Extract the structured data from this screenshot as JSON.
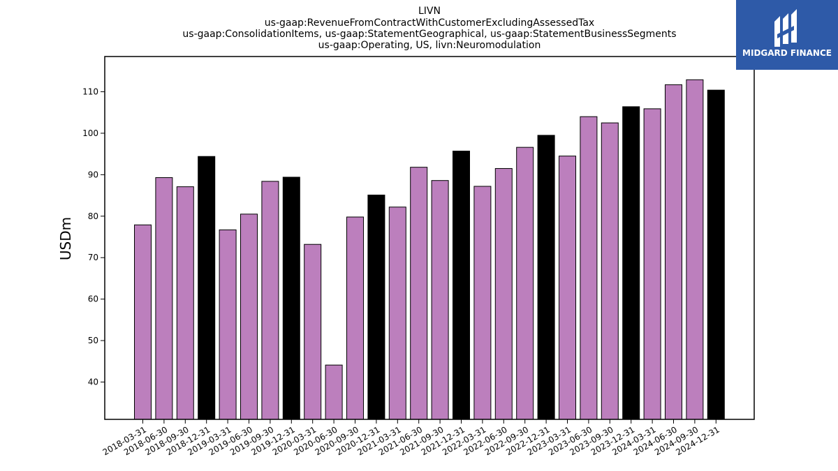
{
  "brand": {
    "name": "MIDGARD FINANCE",
    "background_color": "#2e5aa8",
    "icon": "midgard-logo-icon"
  },
  "chart_data": {
    "type": "bar",
    "title_lines": [
      "LIVN",
      "us-gaap:RevenueFromContractWithCustomerExcludingAssessedTax",
      "us-gaap:ConsolidationItems, us-gaap:StatementGeographical, us-gaap:StatementBusinessSegments",
      "us-gaap:Operating, US, livn:Neuromodulation"
    ],
    "xlabel": "",
    "ylabel": "USDm",
    "ylim": [
      31,
      118.5
    ],
    "yticks": [
      40,
      50,
      60,
      70,
      80,
      90,
      100,
      110
    ],
    "grid": false,
    "colors": {
      "quarter": "#bc7fbd",
      "year_end": "#000000",
      "edge": "#000000"
    },
    "categories": [
      "2018-03-31",
      "2018-06-30",
      "2018-09-30",
      "2018-12-31",
      "2019-03-31",
      "2019-06-30",
      "2019-09-30",
      "2019-12-31",
      "2020-03-31",
      "2020-06-30",
      "2020-09-30",
      "2020-12-31",
      "2021-03-31",
      "2021-06-30",
      "2021-09-30",
      "2021-12-31",
      "2022-03-31",
      "2022-06-30",
      "2022-09-30",
      "2022-12-31",
      "2023-03-31",
      "2023-06-30",
      "2023-09-30",
      "2023-12-31",
      "2024-03-31",
      "2024-06-30",
      "2024-09-30",
      "2024-12-31"
    ],
    "values": [
      77.9,
      89.3,
      87.1,
      94.4,
      76.7,
      80.5,
      88.4,
      89.4,
      73.2,
      44.1,
      79.8,
      85.1,
      82.2,
      91.8,
      88.6,
      95.7,
      87.2,
      91.5,
      96.6,
      99.5,
      94.5,
      104.0,
      102.5,
      106.4,
      105.9,
      111.7,
      112.9,
      110.4
    ]
  }
}
